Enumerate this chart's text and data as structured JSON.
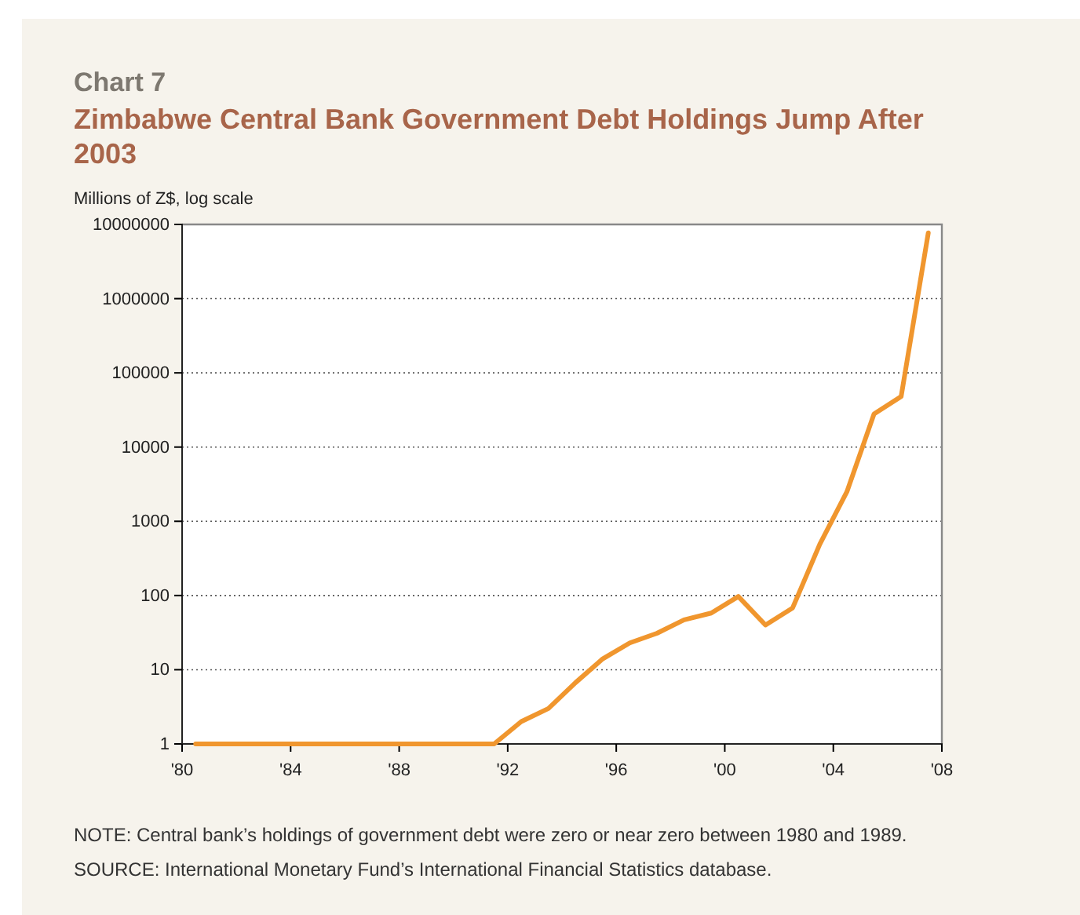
{
  "chart_data": {
    "type": "line",
    "title": "Chart 7",
    "subtitle": "Zimbabwe Central Bank Government Debt Holdings Jump After 2003",
    "ylabel": "Millions of Z$, log scale",
    "x": [
      1980.5,
      1981.5,
      1982.5,
      1983.5,
      1984.5,
      1985.5,
      1986.5,
      1987.5,
      1988.5,
      1989.5,
      1990.5,
      1991.5,
      1992.5,
      1993.5,
      1994.5,
      1995.5,
      1996.5,
      1997.5,
      1998.5,
      1999.5,
      2000.5,
      2001.5,
      2002.5,
      2003.5,
      2004.5,
      2005.5,
      2006.5,
      2007.5
    ],
    "series": [
      {
        "color": "#f0962e",
        "values": [
          1,
          1,
          1,
          1,
          1,
          1,
          1,
          1,
          1,
          1,
          1,
          1,
          2,
          3,
          6.7,
          14,
          23,
          31,
          47,
          58,
          97,
          40,
          68,
          490,
          2500,
          28000,
          48000,
          7700000
        ]
      }
    ],
    "xlim": [
      1980,
      2008
    ],
    "xticks": [
      {
        "value": 1980,
        "label": "'80"
      },
      {
        "value": 1984,
        "label": "'84"
      },
      {
        "value": 1988,
        "label": "'88"
      },
      {
        "value": 1992,
        "label": "'92"
      },
      {
        "value": 1996,
        "label": "'96"
      },
      {
        "value": 2000,
        "label": "'00"
      },
      {
        "value": 2004,
        "label": "'04"
      },
      {
        "value": 2008,
        "label": "'08"
      }
    ],
    "ylim": [
      1,
      10000000
    ],
    "yticks": [
      1,
      10,
      100,
      1000,
      10000,
      100000,
      1000000,
      10000000
    ],
    "log": "y",
    "grid": "y",
    "annotations": [
      "NOTE: Central bank’s holdings of government debt were zero or near zero between 1980 and 1989.",
      "SOURCE: International Monetary Fund’s International Financial Statistics database."
    ]
  }
}
